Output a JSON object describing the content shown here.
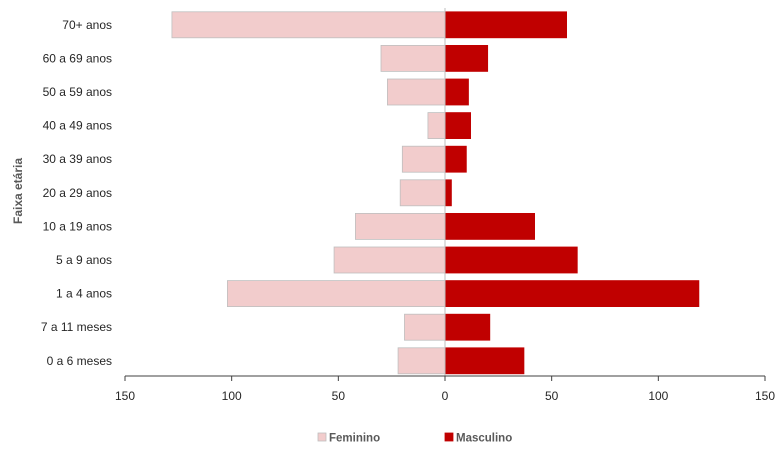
{
  "chart_data": {
    "type": "bar",
    "orientation": "horizontal",
    "layout": "population-pyramid",
    "categories": [
      "70+ anos",
      "60 a 69 anos",
      "50 a 59 anos",
      "40 a 49 anos",
      "30 a 39 anos",
      "20 a 29 anos",
      "10 a 19 anos",
      "5 a 9 anos",
      "1 a 4 anos",
      "7 a 11 meses",
      "0 a 6 meses"
    ],
    "series": [
      {
        "name": "Feminino",
        "color": "#f2cccc",
        "border": "#bfbfbf",
        "direction": "left",
        "values": [
          128,
          30,
          27,
          8,
          20,
          21,
          42,
          52,
          102,
          19,
          22
        ]
      },
      {
        "name": "Masculino",
        "color": "#c00000",
        "border": "#c00000",
        "direction": "right",
        "values": [
          57,
          20,
          11,
          12,
          10,
          3,
          42,
          62,
          119,
          21,
          37
        ]
      }
    ],
    "xlim": [
      -150,
      150
    ],
    "xticks": [
      -150,
      -100,
      -50,
      0,
      50,
      100,
      150
    ],
    "tick_labels": [
      "150",
      "100",
      "50",
      "0",
      "50",
      "100",
      "150"
    ],
    "title": "",
    "xlabel": "",
    "ylabel": "Faixa etária",
    "legend": {
      "position": "bottom",
      "entries": [
        "Feminino",
        "Masculino"
      ]
    },
    "grid": false
  }
}
